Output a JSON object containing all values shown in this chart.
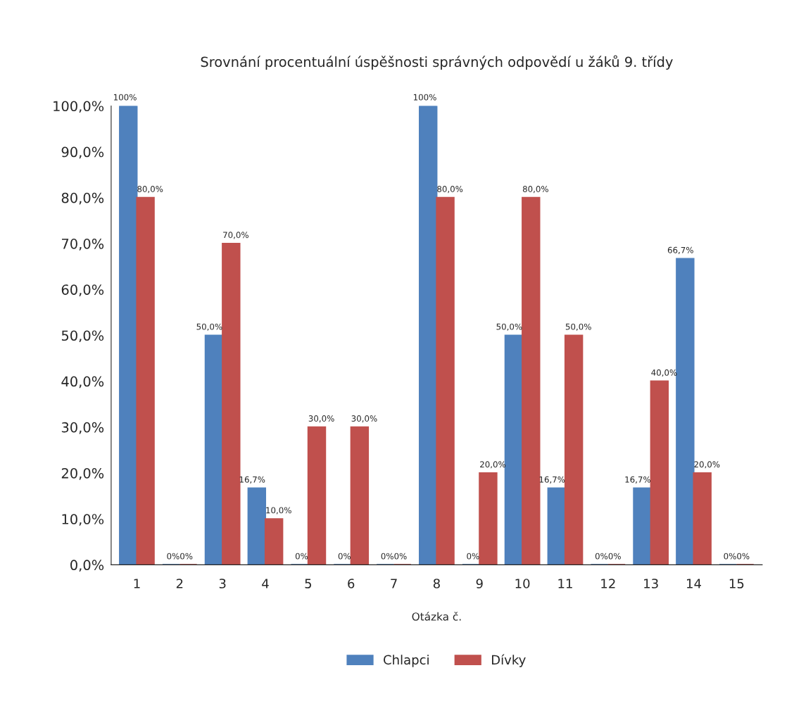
{
  "chart_data": {
    "type": "bar",
    "title": "Srovnání procentuální úspěšnosti správných odpovědí u žáků 9. třídy",
    "xlabel": "Otázka č.",
    "categories": [
      "1",
      "2",
      "3",
      "4",
      "5",
      "6",
      "7",
      "8",
      "9",
      "10",
      "11",
      "12",
      "13",
      "14",
      "15"
    ],
    "series": [
      {
        "name": "Chlapci",
        "color": "#4f81bd",
        "values": [
          100,
          0,
          50,
          16.7,
          0,
          0,
          0,
          100,
          0,
          50,
          16.7,
          0,
          16.7,
          66.7,
          0
        ],
        "value_labels": [
          "100%",
          "0%",
          "50,0%",
          "16,7%",
          "0%",
          "0%",
          "0%",
          "100%",
          "0%",
          "50,0%",
          "16,7%",
          "0%",
          "16,7%",
          "66,7%",
          "0%"
        ]
      },
      {
        "name": "Dívky",
        "color": "#c0504d",
        "values": [
          80,
          0,
          70,
          10,
          30,
          30,
          0,
          80,
          20,
          80,
          50,
          0,
          40,
          20,
          0
        ],
        "value_labels": [
          "80,0%",
          "0%",
          "70,0%",
          "10,0%",
          "30,0%",
          "30,0%",
          "0%",
          "80,0%",
          "20,0%",
          "80,0%",
          "50,0%",
          "0%",
          "40,0%",
          "20,0%",
          "0%"
        ]
      }
    ],
    "ylim": [
      0,
      100
    ],
    "yticks": [
      {
        "value": 0,
        "label": "0,0%"
      },
      {
        "value": 10,
        "label": "10,0%"
      },
      {
        "value": 20,
        "label": "20,0%"
      },
      {
        "value": 30,
        "label": "30,0%"
      },
      {
        "value": 40,
        "label": "40,0%"
      },
      {
        "value": 50,
        "label": "50,0%"
      },
      {
        "value": 60,
        "label": "60,0%"
      },
      {
        "value": 70,
        "label": "70,0%"
      },
      {
        "value": 80,
        "label": "80,0%"
      },
      {
        "value": 90,
        "label": "90,0%"
      },
      {
        "value": 100,
        "label": "100,0%"
      }
    ],
    "grid": false,
    "legend": "bottom"
  }
}
